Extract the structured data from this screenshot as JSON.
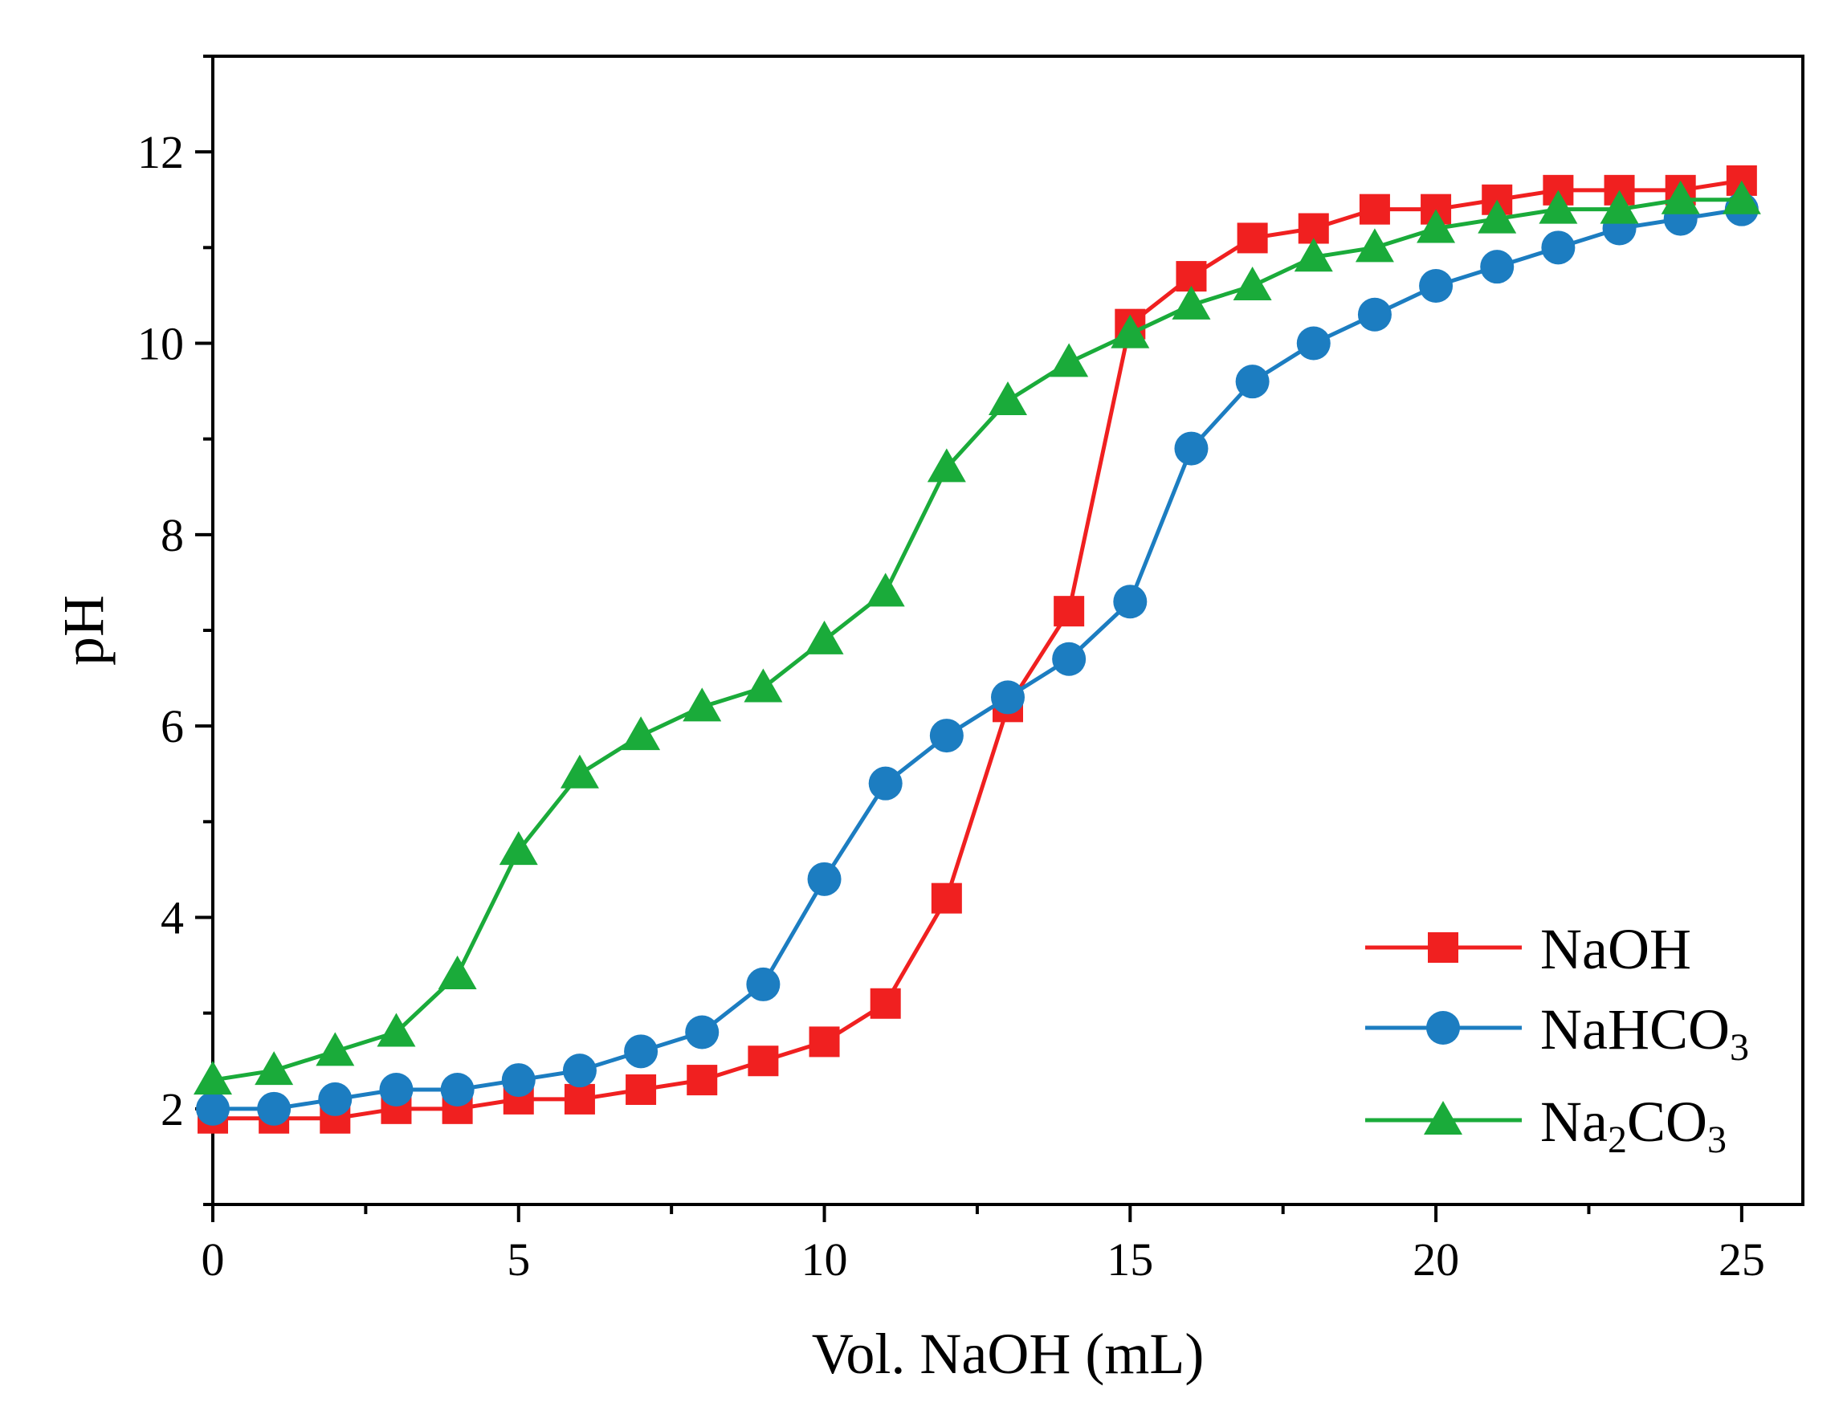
{
  "chart_data": {
    "type": "line",
    "title": "",
    "xlabel": "Vol. NaOH (mL)",
    "ylabel": "pH",
    "xlim": [
      0,
      26
    ],
    "ylim": [
      1,
      13
    ],
    "xticks": [
      0,
      5,
      10,
      15,
      20,
      25
    ],
    "xtick_labels": [
      "0",
      "5",
      "10",
      "15",
      "20",
      "25"
    ],
    "yticks": [
      2,
      4,
      6,
      8,
      10,
      12
    ],
    "ytick_labels": [
      "2",
      "4",
      "6",
      "8",
      "10",
      "12"
    ],
    "grid": false,
    "legend_position": "bottom-right",
    "series": [
      {
        "name": "NaOH",
        "label_main": "NaOH",
        "label_parts": [],
        "color": "#F02020",
        "marker": "square",
        "x": [
          0,
          1,
          2,
          3,
          4,
          5,
          6,
          7,
          8,
          9,
          10,
          11,
          12,
          13,
          14,
          15,
          16,
          17,
          18,
          19,
          20,
          21,
          22,
          23,
          24,
          25
        ],
        "values": [
          1.9,
          1.9,
          1.9,
          2.0,
          2.0,
          2.1,
          2.1,
          2.2,
          2.3,
          2.5,
          2.7,
          3.1,
          4.2,
          6.2,
          7.2,
          10.2,
          10.7,
          11.1,
          11.2,
          11.4,
          11.4,
          11.5,
          11.6,
          11.6,
          11.6,
          11.7
        ]
      },
      {
        "name": "NaHCO3",
        "label_main": "NaHCO",
        "label_parts": [
          {
            "text": "3",
            "sub": true
          }
        ],
        "color": "#1C7DC1",
        "marker": "circle",
        "x": [
          0,
          1,
          2,
          3,
          4,
          5,
          6,
          7,
          8,
          9,
          10,
          11,
          12,
          13,
          14,
          15,
          16,
          17,
          18,
          19,
          20,
          21,
          22,
          23,
          24,
          25
        ],
        "values": [
          2.0,
          2.0,
          2.1,
          2.2,
          2.2,
          2.3,
          2.4,
          2.6,
          2.8,
          3.3,
          4.4,
          5.4,
          5.9,
          6.3,
          6.7,
          7.3,
          8.9,
          9.6,
          10.0,
          10.3,
          10.6,
          10.8,
          11.0,
          11.2,
          11.3,
          11.4
        ]
      },
      {
        "name": "Na2CO3",
        "label_main": "Na",
        "label_parts": [
          {
            "text": "2",
            "sub": true
          },
          {
            "text": "CO",
            "sub": false
          },
          {
            "text": "3",
            "sub": true
          }
        ],
        "color": "#1AAB3A",
        "marker": "triangle",
        "x": [
          0,
          1,
          2,
          3,
          4,
          5,
          6,
          7,
          8,
          9,
          10,
          11,
          12,
          13,
          14,
          15,
          16,
          17,
          18,
          19,
          20,
          21,
          22,
          23,
          24,
          25
        ],
        "values": [
          2.3,
          2.4,
          2.6,
          2.8,
          3.4,
          4.7,
          5.5,
          5.9,
          6.2,
          6.4,
          6.9,
          7.4,
          8.7,
          9.4,
          9.8,
          10.1,
          10.4,
          10.6,
          10.9,
          11.0,
          11.2,
          11.3,
          11.4,
          11.4,
          11.5,
          11.5
        ]
      }
    ]
  }
}
